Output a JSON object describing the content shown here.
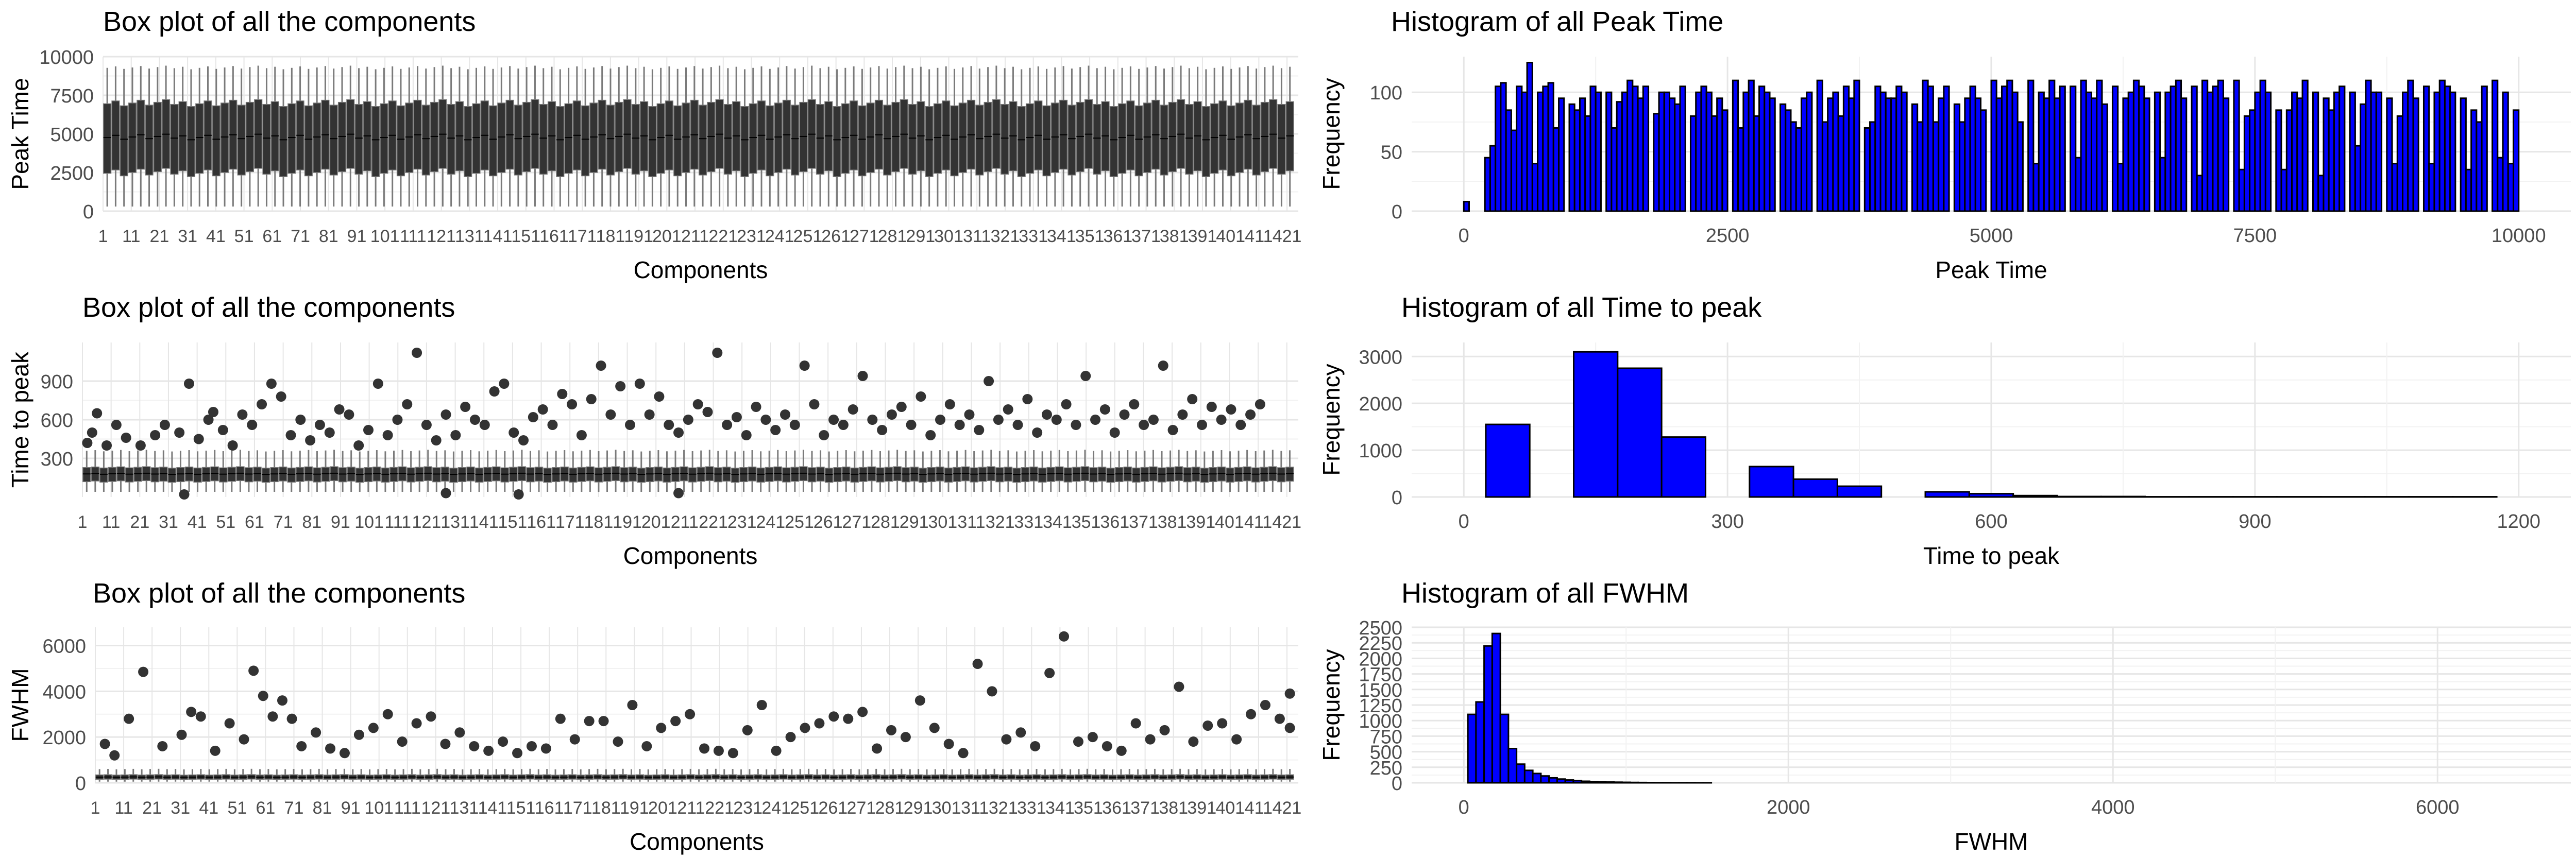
{
  "colors": {
    "box_fill": "#333333",
    "box_line": "#7a7a7a",
    "point": "#333333",
    "hist_fill": "#0000ff",
    "hist_edge": "#000000",
    "grid_major": "#e6e6e6",
    "grid_minor": "#f2f2f2"
  },
  "chart_data": [
    {
      "type": "box",
      "title": "Box plot of all the components",
      "xlabel": "Components",
      "ylabel": "Peak Time",
      "ylim": [
        0,
        10000
      ],
      "yticks": [
        "0",
        "2500",
        "5000",
        "7500",
        "10000"
      ],
      "ytick_values": [
        0,
        2500,
        5000,
        7500,
        10000
      ],
      "n_components": 142,
      "xtick_labels": [
        "1",
        "11",
        "21",
        "31",
        "41",
        "51",
        "61",
        "71",
        "81",
        "91",
        "101",
        "111",
        "121",
        "131",
        "141",
        "151",
        "161",
        "171",
        "181",
        "191",
        "201",
        "211",
        "221",
        "231",
        "241",
        "251",
        "261",
        "271",
        "281",
        "291",
        "301",
        "311",
        "321",
        "331",
        "341",
        "351",
        "361",
        "371",
        "381",
        "391",
        "401",
        "411",
        "421"
      ],
      "typical": {
        "min": 300,
        "q1": 2500,
        "median": 4800,
        "q3": 7000,
        "max": 9300
      },
      "outliers": []
    },
    {
      "type": "histogram",
      "title": "Histogram of all Peak Time",
      "xlabel": "Peak Time",
      "ylabel": "Frequency",
      "xlim": [
        0,
        10000
      ],
      "ylim": [
        0,
        130
      ],
      "xticks": [
        "0",
        "2500",
        "5000",
        "7500",
        "10000"
      ],
      "xtick_values": [
        0,
        2500,
        5000,
        7500,
        10000
      ],
      "yticks": [
        "0",
        "50",
        "100"
      ],
      "ytick_values": [
        0,
        50,
        100
      ],
      "bin_start": 0,
      "bin_width": 50,
      "values": [
        8,
        0,
        0,
        0,
        45,
        55,
        105,
        108,
        85,
        68,
        105,
        100,
        125,
        40,
        100,
        105,
        108,
        70,
        95,
        0,
        90,
        85,
        95,
        80,
        105,
        100,
        0,
        100,
        70,
        92,
        100,
        110,
        105,
        95,
        105,
        0,
        82,
        100,
        100,
        95,
        90,
        105,
        0,
        80,
        100,
        105,
        100,
        80,
        95,
        85,
        0,
        110,
        70,
        100,
        110,
        80,
        105,
        100,
        95,
        0,
        90,
        85,
        75,
        70,
        95,
        100,
        0,
        110,
        75,
        95,
        100,
        80,
        105,
        95,
        110,
        0,
        70,
        75,
        105,
        100,
        95,
        95,
        105,
        100,
        0,
        90,
        75,
        110,
        105,
        75,
        95,
        105,
        0,
        90,
        75,
        95,
        105,
        95,
        85,
        0,
        110,
        95,
        105,
        110,
        100,
        75,
        0,
        110,
        40,
        100,
        95,
        110,
        95,
        105,
        0,
        105,
        45,
        110,
        100,
        95,
        110,
        90,
        0,
        105,
        40,
        95,
        100,
        110,
        105,
        95,
        0,
        100,
        45,
        100,
        105,
        110,
        95,
        0,
        105,
        30,
        110,
        100,
        105,
        110,
        95,
        0,
        110,
        35,
        80,
        85,
        100,
        110,
        100,
        0,
        85,
        35,
        85,
        100,
        95,
        110,
        0,
        100,
        30,
        95,
        85,
        100,
        105,
        0,
        100,
        55,
        90,
        110,
        100,
        100,
        0,
        95,
        40,
        80,
        100,
        110,
        95,
        0,
        105,
        40,
        100,
        110,
        105,
        100,
        0,
        95,
        35,
        85,
        75,
        105,
        0,
        110,
        45,
        100,
        40,
        85
      ]
    },
    {
      "type": "box",
      "title": "Box plot of all the components",
      "xlabel": "Components",
      "ylabel": "Time to peak",
      "ylim": [
        0,
        1200
      ],
      "yticks": [
        "300",
        "600",
        "900"
      ],
      "ytick_values": [
        300,
        600,
        900
      ],
      "n_components": 142,
      "xtick_labels": [
        "1",
        "11",
        "21",
        "31",
        "41",
        "51",
        "61",
        "71",
        "81",
        "91",
        "101",
        "111",
        "121",
        "131",
        "141",
        "151",
        "161",
        "171",
        "181",
        "191",
        "201",
        "211",
        "221",
        "231",
        "241",
        "251",
        "261",
        "271",
        "281",
        "291",
        "301",
        "311",
        "321",
        "331",
        "341",
        "351",
        "361",
        "371",
        "381",
        "391",
        "401",
        "411",
        "421"
      ],
      "typical": {
        "min": 40,
        "q1": 120,
        "median": 180,
        "q3": 230,
        "max": 360
      },
      "outliers": [
        [
          1,
          420
        ],
        [
          2,
          500
        ],
        [
          3,
          650
        ],
        [
          5,
          400
        ],
        [
          7,
          560
        ],
        [
          9,
          460
        ],
        [
          12,
          400
        ],
        [
          15,
          480
        ],
        [
          17,
          560
        ],
        [
          20,
          500
        ],
        [
          22,
          880
        ],
        [
          24,
          450
        ],
        [
          26,
          600
        ],
        [
          27,
          660
        ],
        [
          29,
          520
        ],
        [
          31,
          400
        ],
        [
          33,
          640
        ],
        [
          35,
          560
        ],
        [
          37,
          720
        ],
        [
          39,
          880
        ],
        [
          41,
          780
        ],
        [
          43,
          480
        ],
        [
          45,
          600
        ],
        [
          47,
          440
        ],
        [
          49,
          560
        ],
        [
          51,
          500
        ],
        [
          53,
          680
        ],
        [
          55,
          640
        ],
        [
          57,
          400
        ],
        [
          59,
          520
        ],
        [
          61,
          880
        ],
        [
          63,
          480
        ],
        [
          65,
          600
        ],
        [
          67,
          720
        ],
        [
          69,
          1120
        ],
        [
          71,
          560
        ],
        [
          73,
          440
        ],
        [
          75,
          640
        ],
        [
          77,
          480
        ],
        [
          79,
          700
        ],
        [
          81,
          600
        ],
        [
          83,
          560
        ],
        [
          85,
          820
        ],
        [
          87,
          880
        ],
        [
          89,
          500
        ],
        [
          91,
          440
        ],
        [
          93,
          620
        ],
        [
          95,
          680
        ],
        [
          97,
          560
        ],
        [
          99,
          800
        ],
        [
          101,
          720
        ],
        [
          103,
          480
        ],
        [
          105,
          760
        ],
        [
          107,
          1020
        ],
        [
          109,
          640
        ],
        [
          111,
          860
        ],
        [
          113,
          560
        ],
        [
          115,
          880
        ],
        [
          117,
          640
        ],
        [
          119,
          780
        ],
        [
          121,
          560
        ],
        [
          123,
          500
        ],
        [
          125,
          600
        ],
        [
          127,
          720
        ],
        [
          129,
          660
        ],
        [
          131,
          1120
        ],
        [
          133,
          560
        ],
        [
          135,
          620
        ],
        [
          137,
          480
        ],
        [
          139,
          700
        ],
        [
          141,
          600
        ],
        [
          143,
          520
        ],
        [
          145,
          640
        ],
        [
          147,
          560
        ],
        [
          149,
          1020
        ],
        [
          151,
          720
        ],
        [
          153,
          480
        ],
        [
          155,
          600
        ],
        [
          157,
          560
        ],
        [
          159,
          680
        ],
        [
          161,
          940
        ],
        [
          163,
          600
        ],
        [
          165,
          520
        ],
        [
          167,
          640
        ],
        [
          169,
          700
        ],
        [
          171,
          560
        ],
        [
          173,
          780
        ],
        [
          175,
          480
        ],
        [
          177,
          600
        ],
        [
          179,
          720
        ],
        [
          181,
          560
        ],
        [
          183,
          640
        ],
        [
          185,
          520
        ],
        [
          187,
          900
        ],
        [
          189,
          600
        ],
        [
          191,
          680
        ],
        [
          193,
          560
        ],
        [
          195,
          760
        ],
        [
          197,
          500
        ],
        [
          199,
          640
        ],
        [
          201,
          600
        ],
        [
          203,
          720
        ],
        [
          205,
          560
        ],
        [
          207,
          940
        ],
        [
          209,
          600
        ],
        [
          211,
          680
        ],
        [
          213,
          500
        ],
        [
          215,
          640
        ],
        [
          217,
          720
        ],
        [
          219,
          560
        ],
        [
          221,
          600
        ],
        [
          223,
          1020
        ],
        [
          225,
          520
        ],
        [
          227,
          640
        ],
        [
          229,
          760
        ],
        [
          231,
          560
        ],
        [
          233,
          700
        ],
        [
          235,
          600
        ],
        [
          237,
          680
        ],
        [
          239,
          560
        ],
        [
          241,
          640
        ],
        [
          243,
          720
        ]
      ],
      "low_outliers": [
        [
          21,
          20
        ],
        [
          75,
          30
        ],
        [
          90,
          20
        ],
        [
          123,
          30
        ]
      ]
    },
    {
      "type": "histogram",
      "title": "Histogram of all Time to peak",
      "xlabel": "Time to peak",
      "ylabel": "Frequency",
      "xlim": [
        0,
        1200
      ],
      "ylim": [
        0,
        3300
      ],
      "xticks": [
        "0",
        "300",
        "600",
        "900",
        "1200"
      ],
      "xtick_values": [
        0,
        300,
        600,
        900,
        1200
      ],
      "yticks": [
        "0",
        "1000",
        "2000",
        "3000"
      ],
      "ytick_values": [
        0,
        1000,
        2000,
        3000
      ],
      "bin_start": 25,
      "bin_width": 50,
      "values": [
        1550,
        0,
        3100,
        2750,
        1280,
        0,
        650,
        380,
        230,
        0,
        110,
        70,
        30,
        10,
        10,
        5,
        5,
        5,
        5,
        5,
        5,
        5,
        5
      ]
    },
    {
      "type": "box",
      "title": "Box plot of all the components",
      "xlabel": "Components",
      "ylabel": "FWHM",
      "ylim": [
        0,
        6800
      ],
      "yticks": [
        "0",
        "2000",
        "4000",
        "6000"
      ],
      "ytick_values": [
        0,
        2000,
        4000,
        6000
      ],
      "n_components": 142,
      "xtick_labels": [
        "1",
        "11",
        "21",
        "31",
        "41",
        "51",
        "61",
        "71",
        "81",
        "91",
        "101",
        "111",
        "121",
        "131",
        "141",
        "151",
        "161",
        "171",
        "181",
        "191",
        "201",
        "211",
        "221",
        "231",
        "241",
        "251",
        "261",
        "271",
        "281",
        "291",
        "301",
        "311",
        "321",
        "331",
        "341",
        "351",
        "361",
        "371",
        "381",
        "391",
        "401",
        "411",
        "421"
      ],
      "typical": {
        "min": 50,
        "q1": 150,
        "median": 250,
        "q3": 350,
        "max": 600
      },
      "outliers": [
        [
          2,
          1700
        ],
        [
          4,
          1200
        ],
        [
          7,
          2800
        ],
        [
          10,
          4850
        ],
        [
          14,
          1600
        ],
        [
          18,
          2100
        ],
        [
          20,
          3100
        ],
        [
          22,
          2900
        ],
        [
          25,
          1400
        ],
        [
          28,
          2600
        ],
        [
          31,
          1900
        ],
        [
          33,
          4900
        ],
        [
          35,
          3800
        ],
        [
          37,
          2900
        ],
        [
          39,
          3600
        ],
        [
          41,
          2800
        ],
        [
          43,
          1600
        ],
        [
          46,
          2200
        ],
        [
          49,
          1500
        ],
        [
          52,
          1300
        ],
        [
          55,
          2100
        ],
        [
          58,
          2400
        ],
        [
          61,
          3000
        ],
        [
          64,
          1800
        ],
        [
          67,
          2600
        ],
        [
          70,
          2900
        ],
        [
          73,
          1700
        ],
        [
          76,
          2200
        ],
        [
          79,
          1600
        ],
        [
          82,
          1400
        ],
        [
          85,
          1800
        ],
        [
          88,
          1300
        ],
        [
          91,
          1600
        ],
        [
          94,
          1500
        ],
        [
          97,
          2800
        ],
        [
          100,
          1900
        ],
        [
          103,
          2700
        ],
        [
          106,
          2700
        ],
        [
          109,
          1800
        ],
        [
          112,
          3400
        ],
        [
          115,
          1600
        ],
        [
          118,
          2400
        ],
        [
          121,
          2700
        ],
        [
          124,
          3000
        ],
        [
          127,
          1500
        ],
        [
          130,
          1400
        ],
        [
          133,
          1300
        ],
        [
          136,
          2300
        ],
        [
          139,
          3400
        ],
        [
          142,
          1400
        ],
        [
          145,
          2000
        ],
        [
          148,
          2400
        ],
        [
          151,
          2600
        ],
        [
          154,
          2900
        ],
        [
          157,
          2800
        ],
        [
          160,
          3100
        ],
        [
          163,
          1500
        ],
        [
          166,
          2300
        ],
        [
          169,
          2000
        ],
        [
          172,
          3600
        ],
        [
          175,
          2400
        ],
        [
          178,
          1700
        ],
        [
          181,
          1300
        ],
        [
          184,
          5200
        ],
        [
          187,
          4000
        ],
        [
          190,
          1900
        ],
        [
          193,
          2200
        ],
        [
          196,
          1600
        ],
        [
          199,
          4800
        ],
        [
          202,
          6400
        ],
        [
          205,
          1800
        ],
        [
          208,
          2000
        ],
        [
          211,
          1600
        ],
        [
          214,
          1400
        ],
        [
          217,
          2600
        ],
        [
          220,
          1900
        ],
        [
          223,
          2300
        ],
        [
          226,
          4200
        ],
        [
          229,
          1800
        ],
        [
          232,
          2500
        ],
        [
          235,
          2600
        ],
        [
          238,
          1900
        ],
        [
          241,
          3000
        ],
        [
          244,
          3400
        ],
        [
          247,
          2800
        ],
        [
          250,
          3900
        ],
        [
          253,
          2400
        ]
      ]
    },
    {
      "type": "histogram",
      "title": "Histogram of all FWHM",
      "xlabel": "FWHM",
      "ylabel": "Frequency",
      "xlim": [
        0,
        6500
      ],
      "ylim": [
        0,
        2500
      ],
      "xticks": [
        "0",
        "2000",
        "4000",
        "6000"
      ],
      "xtick_values": [
        0,
        2000,
        4000,
        6000
      ],
      "yticks": [
        "0",
        "250",
        "500",
        "750",
        "1000",
        "1250",
        "1500",
        "1750",
        "2000",
        "2250",
        "2500"
      ],
      "ytick_values": [
        0,
        250,
        500,
        750,
        1000,
        1250,
        1500,
        1750,
        2000,
        2250,
        2500
      ],
      "bin_start": 25,
      "bin_width": 50,
      "values": [
        1100,
        1300,
        2200,
        2400,
        1100,
        550,
        300,
        200,
        150,
        110,
        80,
        60,
        45,
        35,
        25,
        20,
        15,
        12,
        10,
        8,
        6,
        5,
        4,
        3,
        3,
        2,
        2,
        2,
        1,
        1
      ]
    }
  ]
}
